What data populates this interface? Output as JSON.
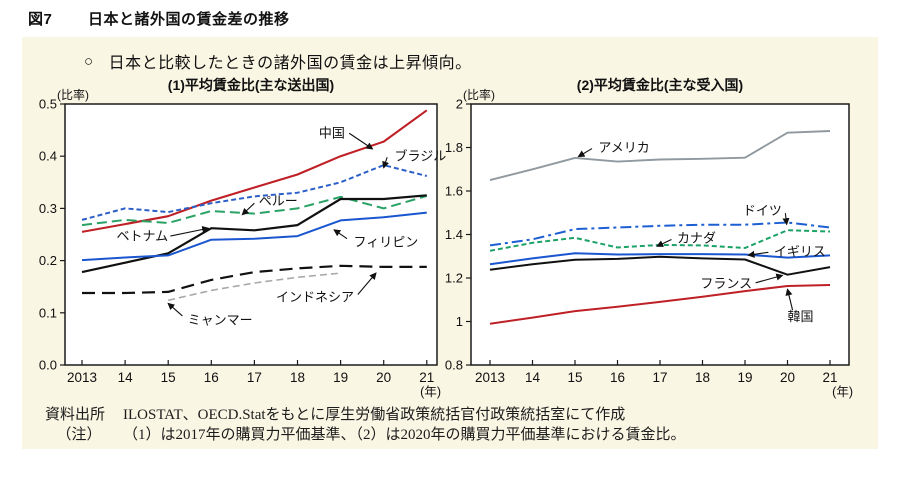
{
  "header": {
    "figure_no": "図7",
    "title": "日本と諸外国の賃金差の推移"
  },
  "panel": {
    "bullet": "○",
    "keypoint": "日本と比較したときの諸外国の賃金は上昇傾向。"
  },
  "footnotes": [
    {
      "label": "資料出所",
      "text": "ILOSTAT、OECD.Statをもとに厚生労働省政策統括官付政策統括室にて作成"
    },
    {
      "label": "（注）",
      "text": "（1）は2017年の購買力平価基準、（2）は2020年の購買力平価基準における賃金比。"
    }
  ],
  "chart_data": [
    {
      "type": "line",
      "title": "(1)平均賃金比(主な送出国)",
      "ylabel": "(比率)",
      "xlabel": "(年)",
      "grid": false,
      "legend": "inline-annotations",
      "x": [
        2013,
        2014,
        2015,
        2016,
        2017,
        2018,
        2019,
        2020,
        2021
      ],
      "xtick_labels": [
        "2013",
        "14",
        "15",
        "16",
        "17",
        "18",
        "19",
        "20",
        "21"
      ],
      "ylim": [
        0,
        0.5
      ],
      "yticks": [
        {
          "v": 0.0,
          "label": "0.0"
        },
        {
          "v": 0.1,
          "label": "0.1"
        },
        {
          "v": 0.2,
          "label": "0.2"
        },
        {
          "v": 0.3,
          "label": "0.3"
        },
        {
          "v": 0.4,
          "label": "0.4"
        },
        {
          "v": 0.5,
          "label": "0.5"
        }
      ],
      "series": [
        {
          "key": "china",
          "name": "中国",
          "color": "#bf2026",
          "dash": null,
          "width": 2.1,
          "values": [
            0.255,
            0.27,
            0.285,
            0.315,
            0.34,
            0.365,
            0.4,
            0.428,
            0.488
          ],
          "label": {
            "at": [
              2019.1,
              0.444
            ],
            "anchor": "end",
            "arrow_from": [
              2019.2,
              0.444
            ],
            "arrow_to": [
              2019.74,
              0.414
            ]
          }
        },
        {
          "key": "brazil",
          "name": "ブラジル",
          "color": "#2b5fc7",
          "dash": "5 3",
          "width": 2,
          "values": [
            0.278,
            0.3,
            0.293,
            0.31,
            0.323,
            0.33,
            0.35,
            0.383,
            0.362
          ],
          "label": {
            "at": [
              2020.25,
              0.4
            ],
            "anchor": "start",
            "arrow_from": [
              2020.08,
              0.398
            ],
            "arrow_to": [
              2020.0,
              0.378
            ]
          }
        },
        {
          "key": "peru",
          "name": "ペルー",
          "color": "#2aa266",
          "dash": "10 5",
          "width": 2,
          "values": [
            0.268,
            0.278,
            0.272,
            0.295,
            0.29,
            0.3,
            0.322,
            0.3,
            0.324
          ],
          "label": {
            "at": [
              2017.1,
              0.314
            ],
            "anchor": "start",
            "arrow_from": [
              2017.0,
              0.31
            ],
            "arrow_to": [
              2016.72,
              0.288
            ]
          }
        },
        {
          "key": "vietnam",
          "name": "ベトナム",
          "color": "#111111",
          "dash": null,
          "width": 2.2,
          "values": [
            0.178,
            0.196,
            0.214,
            0.262,
            0.258,
            0.268,
            0.318,
            0.318,
            0.325
          ],
          "label": {
            "at": [
              2013.8,
              0.247
            ],
            "anchor": "start",
            "arrow_from": [
              2015.05,
              0.247
            ],
            "arrow_to": [
              2015.93,
              0.262
            ]
          }
        },
        {
          "key": "philippines",
          "name": "フィリピン",
          "color": "#1a56cf",
          "dash": null,
          "width": 2,
          "values": [
            0.201,
            0.206,
            0.21,
            0.24,
            0.242,
            0.247,
            0.277,
            0.283,
            0.292
          ],
          "label": {
            "at": [
              2019.3,
              0.236
            ],
            "anchor": "start",
            "arrow_from": [
              2019.15,
              0.242
            ],
            "arrow_to": [
              2018.85,
              0.259
            ]
          }
        },
        {
          "key": "indonesia",
          "name": "インドネシア",
          "color": "#111111",
          "dash": "13 7",
          "width": 2.2,
          "values": [
            0.138,
            0.138,
            0.14,
            0.163,
            0.178,
            0.185,
            0.19,
            0.188,
            0.188
          ],
          "label": {
            "at": [
              2017.5,
              0.13
            ],
            "anchor": "start",
            "arrow_from": [
              2019.4,
              0.135
            ],
            "arrow_to": [
              2019.82,
              0.176
            ]
          }
        },
        {
          "key": "myanmar",
          "name": "ミャンマー",
          "color": "#a8a8a8",
          "dash": "7 4",
          "width": 1.6,
          "values": [
            null,
            null,
            0.124,
            0.143,
            0.157,
            0.168,
            0.176,
            null,
            null
          ],
          "label": {
            "at": [
              2015.45,
              0.086
            ],
            "anchor": "start",
            "arrow_from": [
              2015.33,
              0.094
            ],
            "arrow_to": [
              2015.0,
              0.118
            ]
          }
        }
      ]
    },
    {
      "type": "line",
      "title": "(2)平均賃金比(主な受入国)",
      "ylabel": "(比率)",
      "xlabel": "(年)",
      "grid": false,
      "legend": "inline-annotations",
      "x": [
        2013,
        2014,
        2015,
        2016,
        2017,
        2018,
        2019,
        2020,
        2021
      ],
      "xtick_labels": [
        "2013",
        "14",
        "15",
        "16",
        "17",
        "18",
        "19",
        "20",
        "21"
      ],
      "ylim": [
        0.8,
        2.0
      ],
      "yticks": [
        {
          "v": 0.8,
          "label": "0.8"
        },
        {
          "v": 1.0,
          "label": "1"
        },
        {
          "v": 1.2,
          "label": "1.2"
        },
        {
          "v": 1.4,
          "label": "1.4"
        },
        {
          "v": 1.6,
          "label": "1.6"
        },
        {
          "v": 1.8,
          "label": "1.8"
        },
        {
          "v": 2.0,
          "label": "2"
        }
      ],
      "series": [
        {
          "key": "usa",
          "name": "アメリカ",
          "color": "#8f999f",
          "dash": null,
          "width": 1.9,
          "values": [
            1.65,
            1.7,
            1.752,
            1.735,
            1.745,
            1.748,
            1.753,
            1.868,
            1.876
          ],
          "label": {
            "at": [
              2015.55,
              1.8
            ],
            "anchor": "start",
            "arrow_from": [
              2015.4,
              1.795
            ],
            "arrow_to": [
              2015.08,
              1.758
            ]
          }
        },
        {
          "key": "germany",
          "name": "ドイツ",
          "color": "#1d5fd3",
          "dash": "11 4 3 4",
          "width": 2,
          "values": [
            1.35,
            1.378,
            1.425,
            1.432,
            1.44,
            1.445,
            1.445,
            1.455,
            1.432
          ],
          "label": {
            "at": [
              2018.95,
              1.51
            ],
            "anchor": "start",
            "arrow_from": [
              2019.95,
              1.498
            ],
            "arrow_to": [
              2019.98,
              1.447
            ]
          }
        },
        {
          "key": "canada",
          "name": "カナダ",
          "color": "#1ba266",
          "dash": "5 3",
          "width": 2,
          "values": [
            1.325,
            1.362,
            1.385,
            1.34,
            1.352,
            1.35,
            1.338,
            1.42,
            1.414
          ],
          "label": {
            "at": [
              2017.4,
              1.385
            ],
            "anchor": "start",
            "arrow_from": [
              2017.27,
              1.377
            ],
            "arrow_to": [
              2016.93,
              1.346
            ]
          }
        },
        {
          "key": "uk",
          "name": "イギリス",
          "color": "#1a56cf",
          "dash": null,
          "width": 2,
          "values": [
            1.263,
            1.29,
            1.314,
            1.308,
            1.31,
            1.31,
            1.308,
            1.294,
            1.304
          ],
          "label": {
            "at": [
              2019.68,
              1.322
            ],
            "anchor": "start",
            "arrow_from": [
              2019.55,
              1.318
            ],
            "arrow_to": [
              2019.08,
              1.305
            ]
          }
        },
        {
          "key": "france",
          "name": "フランス",
          "color": "#111111",
          "dash": null,
          "width": 2,
          "values": [
            1.238,
            1.263,
            1.284,
            1.288,
            1.298,
            1.29,
            1.285,
            1.215,
            1.25
          ],
          "label": {
            "at": [
              2017.95,
              1.175
            ],
            "anchor": "start",
            "arrow_from": [
              2019.25,
              1.178
            ],
            "arrow_to": [
              2019.88,
              1.212
            ]
          }
        },
        {
          "key": "korea",
          "name": "韓国",
          "color": "#bf2026",
          "dash": null,
          "width": 2,
          "values": [
            0.99,
            1.018,
            1.048,
            1.068,
            1.09,
            1.114,
            1.14,
            1.163,
            1.168
          ],
          "label": {
            "at": [
              2020.0,
              1.022
            ],
            "anchor": "start",
            "arrow_from": [
              2020.12,
              1.052
            ],
            "arrow_to": [
              2020.0,
              1.148
            ]
          }
        }
      ]
    }
  ]
}
